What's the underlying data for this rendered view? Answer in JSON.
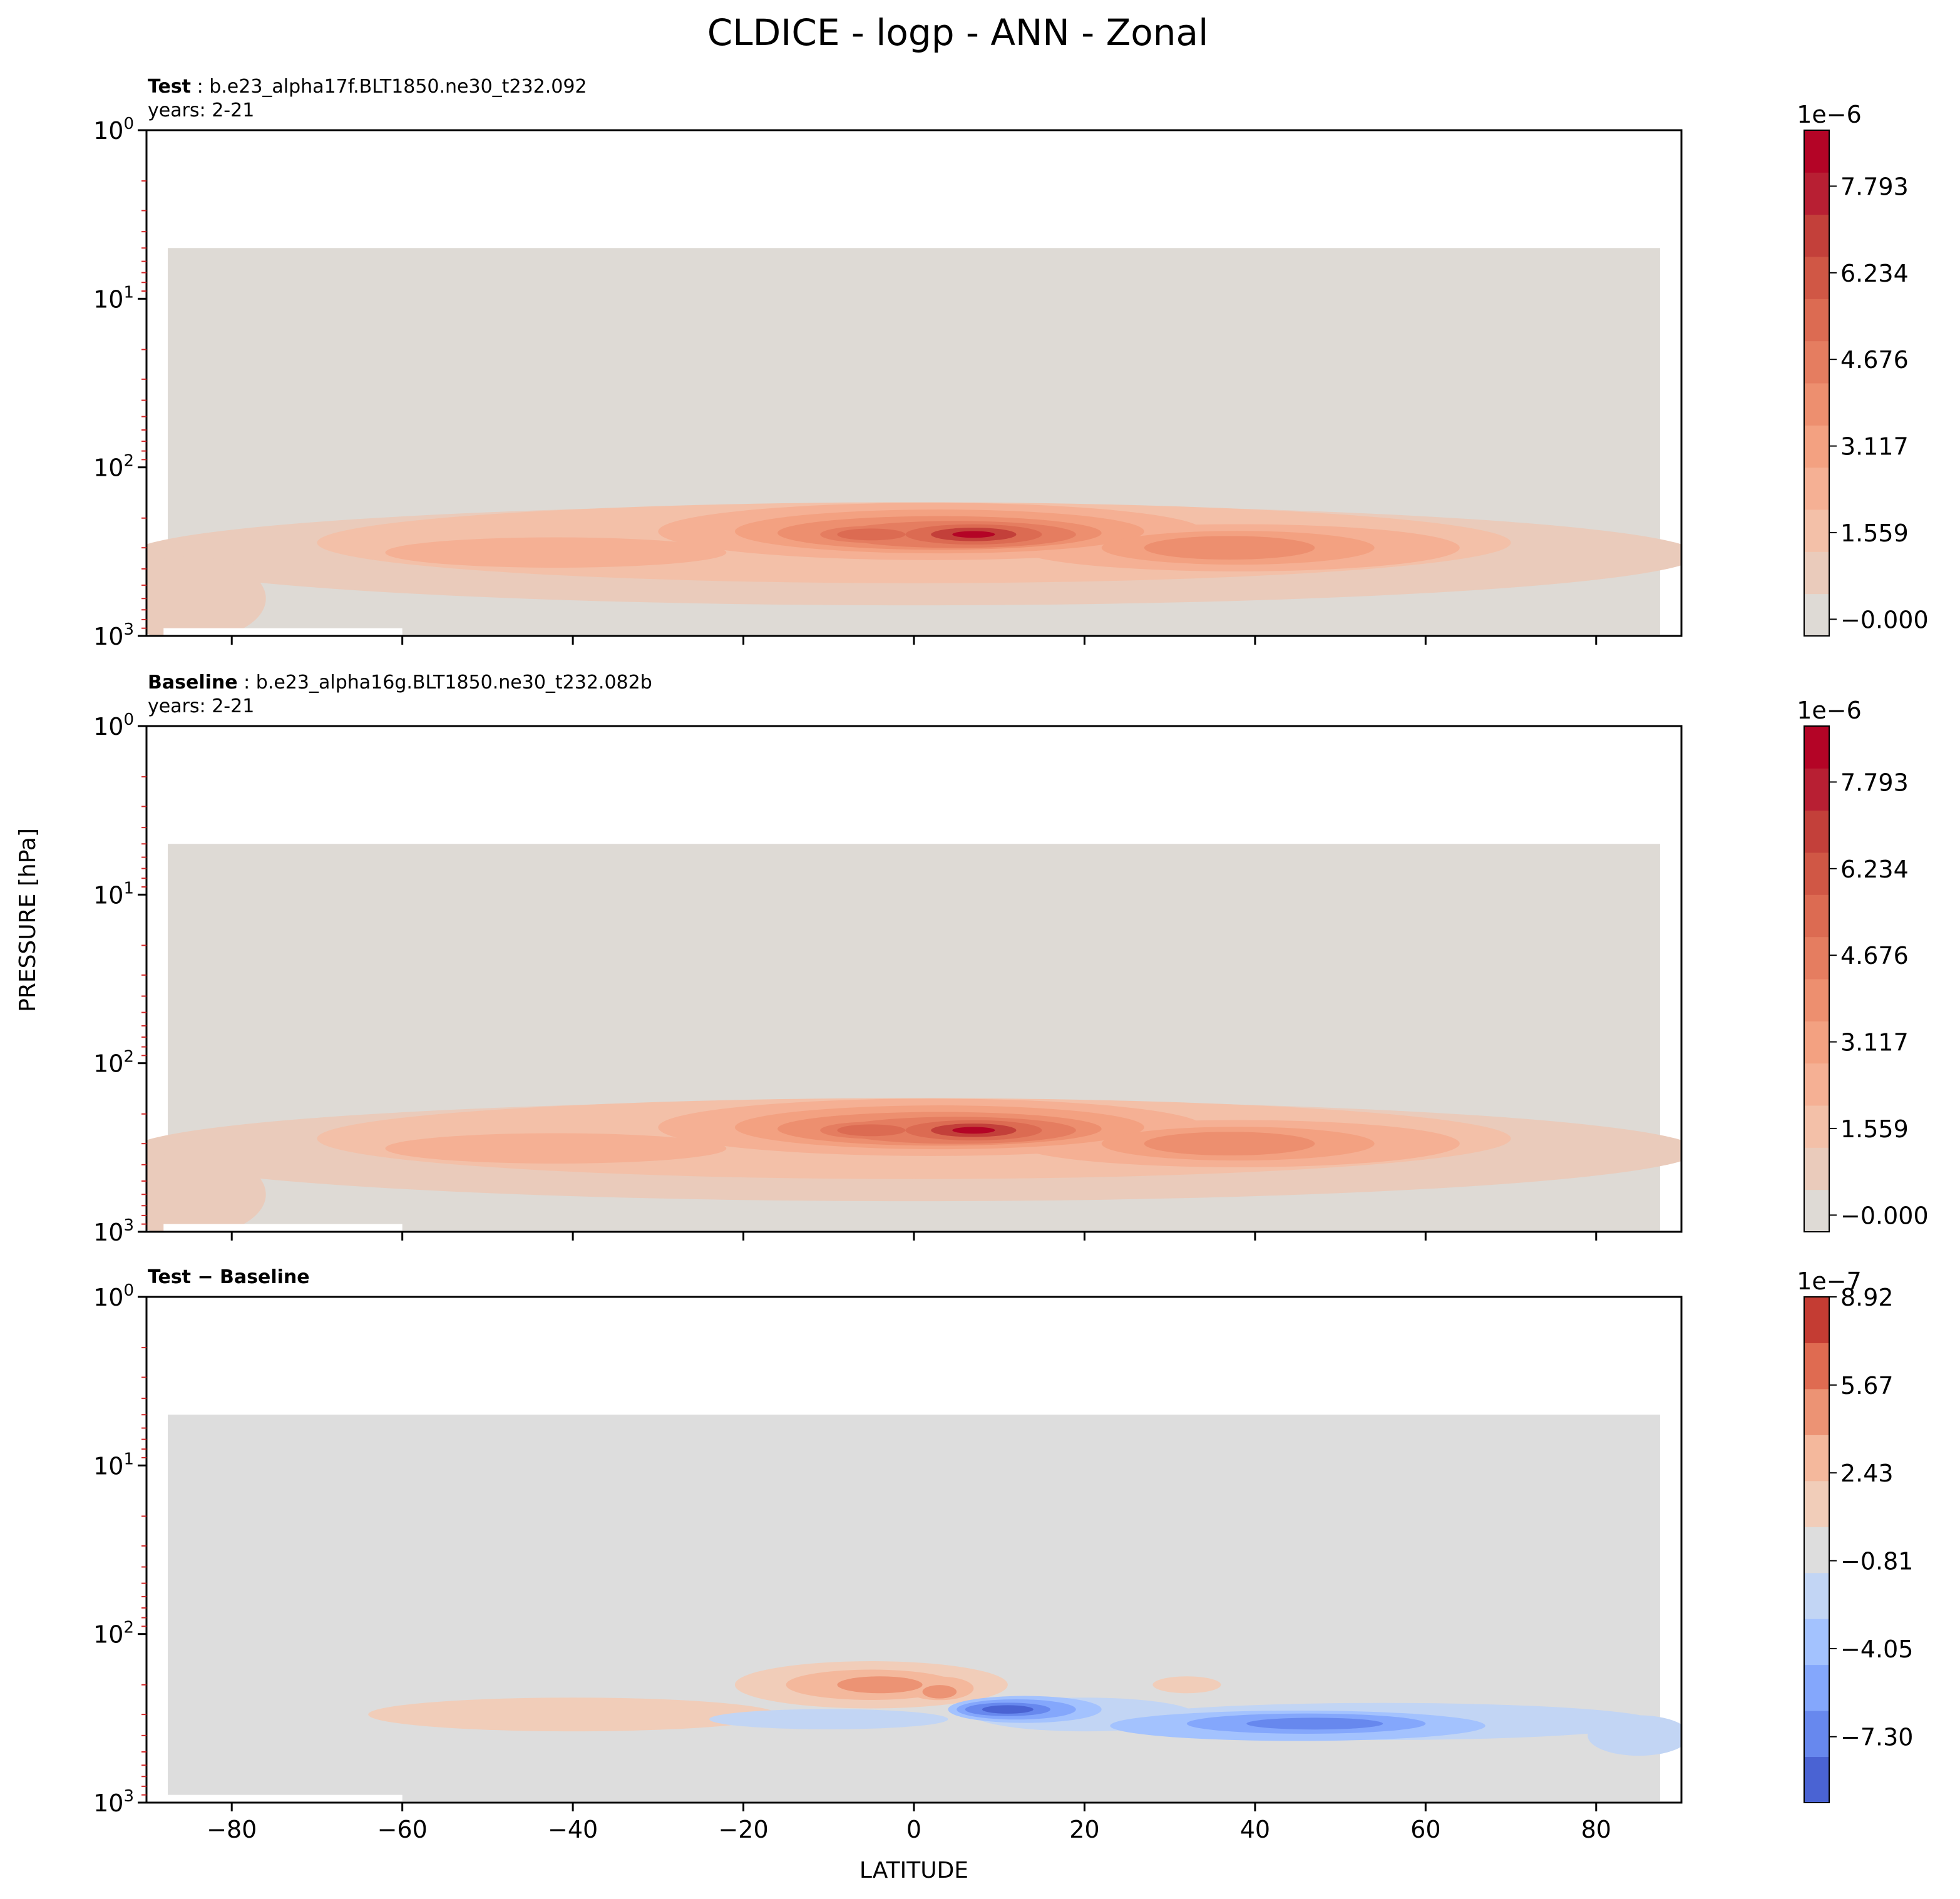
{
  "figure": {
    "title": "CLDICE - logp - ANN - Zonal",
    "ylabel": "PRESSURE [hPa]",
    "xlabel": "LATITUDE"
  },
  "chart_data": [
    {
      "type": "heatmap",
      "panel": "test",
      "label_bold": "Test",
      "label_text": ": b.e23_alpha17f.BLT1850.ne30_t232.092",
      "years": "years: 2-21",
      "xlim": [
        -90,
        90
      ],
      "ylim": [
        1000,
        1
      ],
      "yscale": "log",
      "yticks": [
        {
          "base": "10",
          "exp": "0"
        },
        {
          "base": "10",
          "exp": "1"
        },
        {
          "base": "10",
          "exp": "2"
        },
        {
          "base": "10",
          "exp": "3"
        }
      ],
      "xticks": [
        -80,
        -60,
        -40,
        -20,
        0,
        20,
        40,
        60,
        80
      ],
      "xtick_labels_visible": false,
      "data_top_hPa": 5,
      "colorbar": {
        "multiplier": "1e−6",
        "tick_labels": [
          "−0.000",
          "1.559",
          "3.117",
          "4.676",
          "6.234",
          "7.793"
        ],
        "levels": [
          -3e-07,
          5e-07,
          1e-06,
          1.6e-06,
          2.1e-06,
          2.6e-06,
          3.1e-06,
          3.6e-06,
          4.2e-06,
          4.7e-06,
          5.2e-06,
          5.7e-06,
          6.2e-06,
          6.8e-06,
          7.3e-06,
          7.8e-06,
          8.3e-06,
          8.8e-06
        ],
        "colors": [
          "#dedad5",
          "#eacbbb",
          "#f3c0a8",
          "#f5b094",
          "#f3a181",
          "#ed8f6f",
          "#e57d60",
          "#dc6b52",
          "#d05745",
          "#c3403a",
          "#b81f33",
          "#b40426"
        ]
      },
      "features": [
        {
          "lat": 7,
          "p_hPa": 250,
          "value": 7.8e-06
        },
        {
          "lat": -5,
          "p_hPa": 250,
          "value": 6.4e-06
        },
        {
          "lat": 36,
          "p_hPa": 300,
          "value": 5.2e-06
        },
        {
          "lat": -45,
          "p_hPa": 320,
          "value": 2.6e-06
        }
      ]
    },
    {
      "type": "heatmap",
      "panel": "baseline",
      "label_bold": "Baseline",
      "label_text": ": b.e23_alpha16g.BLT1850.ne30_t232.082b",
      "years": "years: 2-21",
      "xlim": [
        -90,
        90
      ],
      "ylim": [
        1000,
        1
      ],
      "yscale": "log",
      "yticks": [
        {
          "base": "10",
          "exp": "0"
        },
        {
          "base": "10",
          "exp": "1"
        },
        {
          "base": "10",
          "exp": "2"
        },
        {
          "base": "10",
          "exp": "3"
        }
      ],
      "xticks": [
        -80,
        -60,
        -40,
        -20,
        0,
        20,
        40,
        60,
        80
      ],
      "xtick_labels_visible": false,
      "data_top_hPa": 5,
      "colorbar": {
        "multiplier": "1e−6",
        "tick_labels": [
          "−0.000",
          "1.559",
          "3.117",
          "4.676",
          "6.234",
          "7.793"
        ],
        "levels": [
          -3e-07,
          5e-07,
          1e-06,
          1.6e-06,
          2.1e-06,
          2.6e-06,
          3.1e-06,
          3.6e-06,
          4.2e-06,
          4.7e-06,
          5.2e-06,
          5.7e-06,
          6.2e-06,
          6.8e-06,
          7.3e-06,
          7.8e-06,
          8.3e-06,
          8.8e-06
        ],
        "colors": [
          "#dedad5",
          "#eacbbb",
          "#f3c0a8",
          "#f5b094",
          "#f3a181",
          "#ed8f6f",
          "#e57d60",
          "#dc6b52",
          "#d05745",
          "#c3403a",
          "#b81f33",
          "#b40426"
        ]
      },
      "features": [
        {
          "lat": 8,
          "p_hPa": 250,
          "value": 8e-06
        },
        {
          "lat": -5,
          "p_hPa": 250,
          "value": 6e-06
        },
        {
          "lat": 37,
          "p_hPa": 300,
          "value": 5.4e-06
        },
        {
          "lat": -42,
          "p_hPa": 320,
          "value": 2.8e-06
        }
      ]
    },
    {
      "type": "heatmap",
      "panel": "difference",
      "label_bold": "Test − Baseline",
      "label_text": "",
      "years": "",
      "xlim": [
        -90,
        90
      ],
      "ylim": [
        1000,
        1
      ],
      "yscale": "log",
      "yticks": [
        {
          "base": "10",
          "exp": "0"
        },
        {
          "base": "10",
          "exp": "1"
        },
        {
          "base": "10",
          "exp": "2"
        },
        {
          "base": "10",
          "exp": "3"
        }
      ],
      "xticks": [
        -80,
        -60,
        -40,
        -20,
        0,
        20,
        40,
        60,
        80
      ],
      "xtick_labels_visible": true,
      "data_top_hPa": 5,
      "colorbar": {
        "multiplier": "1e−7",
        "tick_labels": [
          "8.92",
          "5.67",
          "2.43",
          "−0.81",
          "−4.05",
          "−7.30"
        ],
        "tick_values": [
          8.92,
          5.67,
          2.43,
          -0.81,
          -4.05,
          -7.3
        ],
        "range": [
          -9.73,
          8.92
        ],
        "colors": [
          "#4a63d3",
          "#6788ee",
          "#84a7fc",
          "#a3c2fe",
          "#c2d5f4",
          "#dddddd",
          "#f1cdb9",
          "#f4b89c",
          "#ec9374",
          "#df6b51",
          "#c43c33"
        ]
      },
      "features": [
        {
          "lat": 10,
          "p_hPa": 280,
          "value": -9e-07
        },
        {
          "lat": 45,
          "p_hPa": 350,
          "value": -7e-07
        },
        {
          "lat": -5,
          "p_hPa": 200,
          "value": 5.5e-07
        },
        {
          "lat": 3,
          "p_hPa": 220,
          "value": 6.5e-07
        },
        {
          "lat": -40,
          "p_hPa": 300,
          "value": 2.5e-07
        }
      ]
    }
  ]
}
